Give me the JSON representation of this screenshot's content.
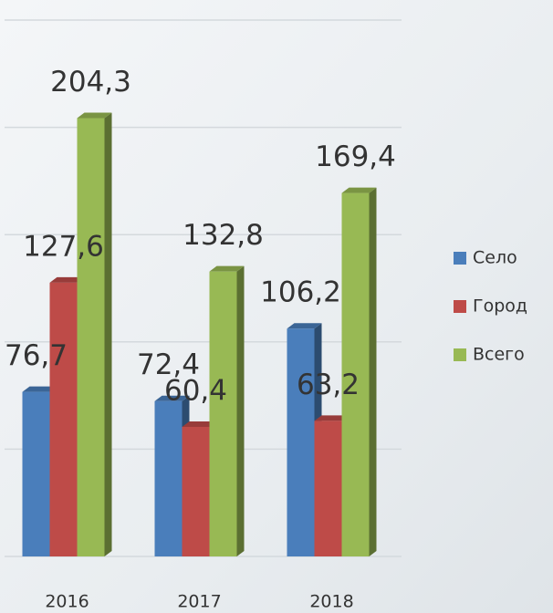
{
  "chart_data": {
    "type": "bar3d",
    "categories": [
      "2016",
      "2017",
      "2018"
    ],
    "series": [
      {
        "name": "Село",
        "color": "#4a7ebb",
        "values": [
          76.7,
          72.4,
          106.2
        ],
        "value_labels": [
          "76,7",
          "72,4",
          "106,2"
        ]
      },
      {
        "name": "Город",
        "color": "#be4b48",
        "values": [
          127.6,
          60.4,
          63.2
        ],
        "value_labels": [
          "127,6",
          "60,4",
          "63,2"
        ]
      },
      {
        "name": "Всего",
        "color": "#98b954",
        "values": [
          204.3,
          132.8,
          169.4
        ],
        "value_labels": [
          "204,3",
          "132,8",
          "169,4"
        ]
      }
    ],
    "ylim": [
      0,
      250
    ],
    "yticks": [
      0,
      50,
      100,
      150,
      200,
      250
    ],
    "ytick_labels": false,
    "grid": true,
    "legend": "right"
  }
}
